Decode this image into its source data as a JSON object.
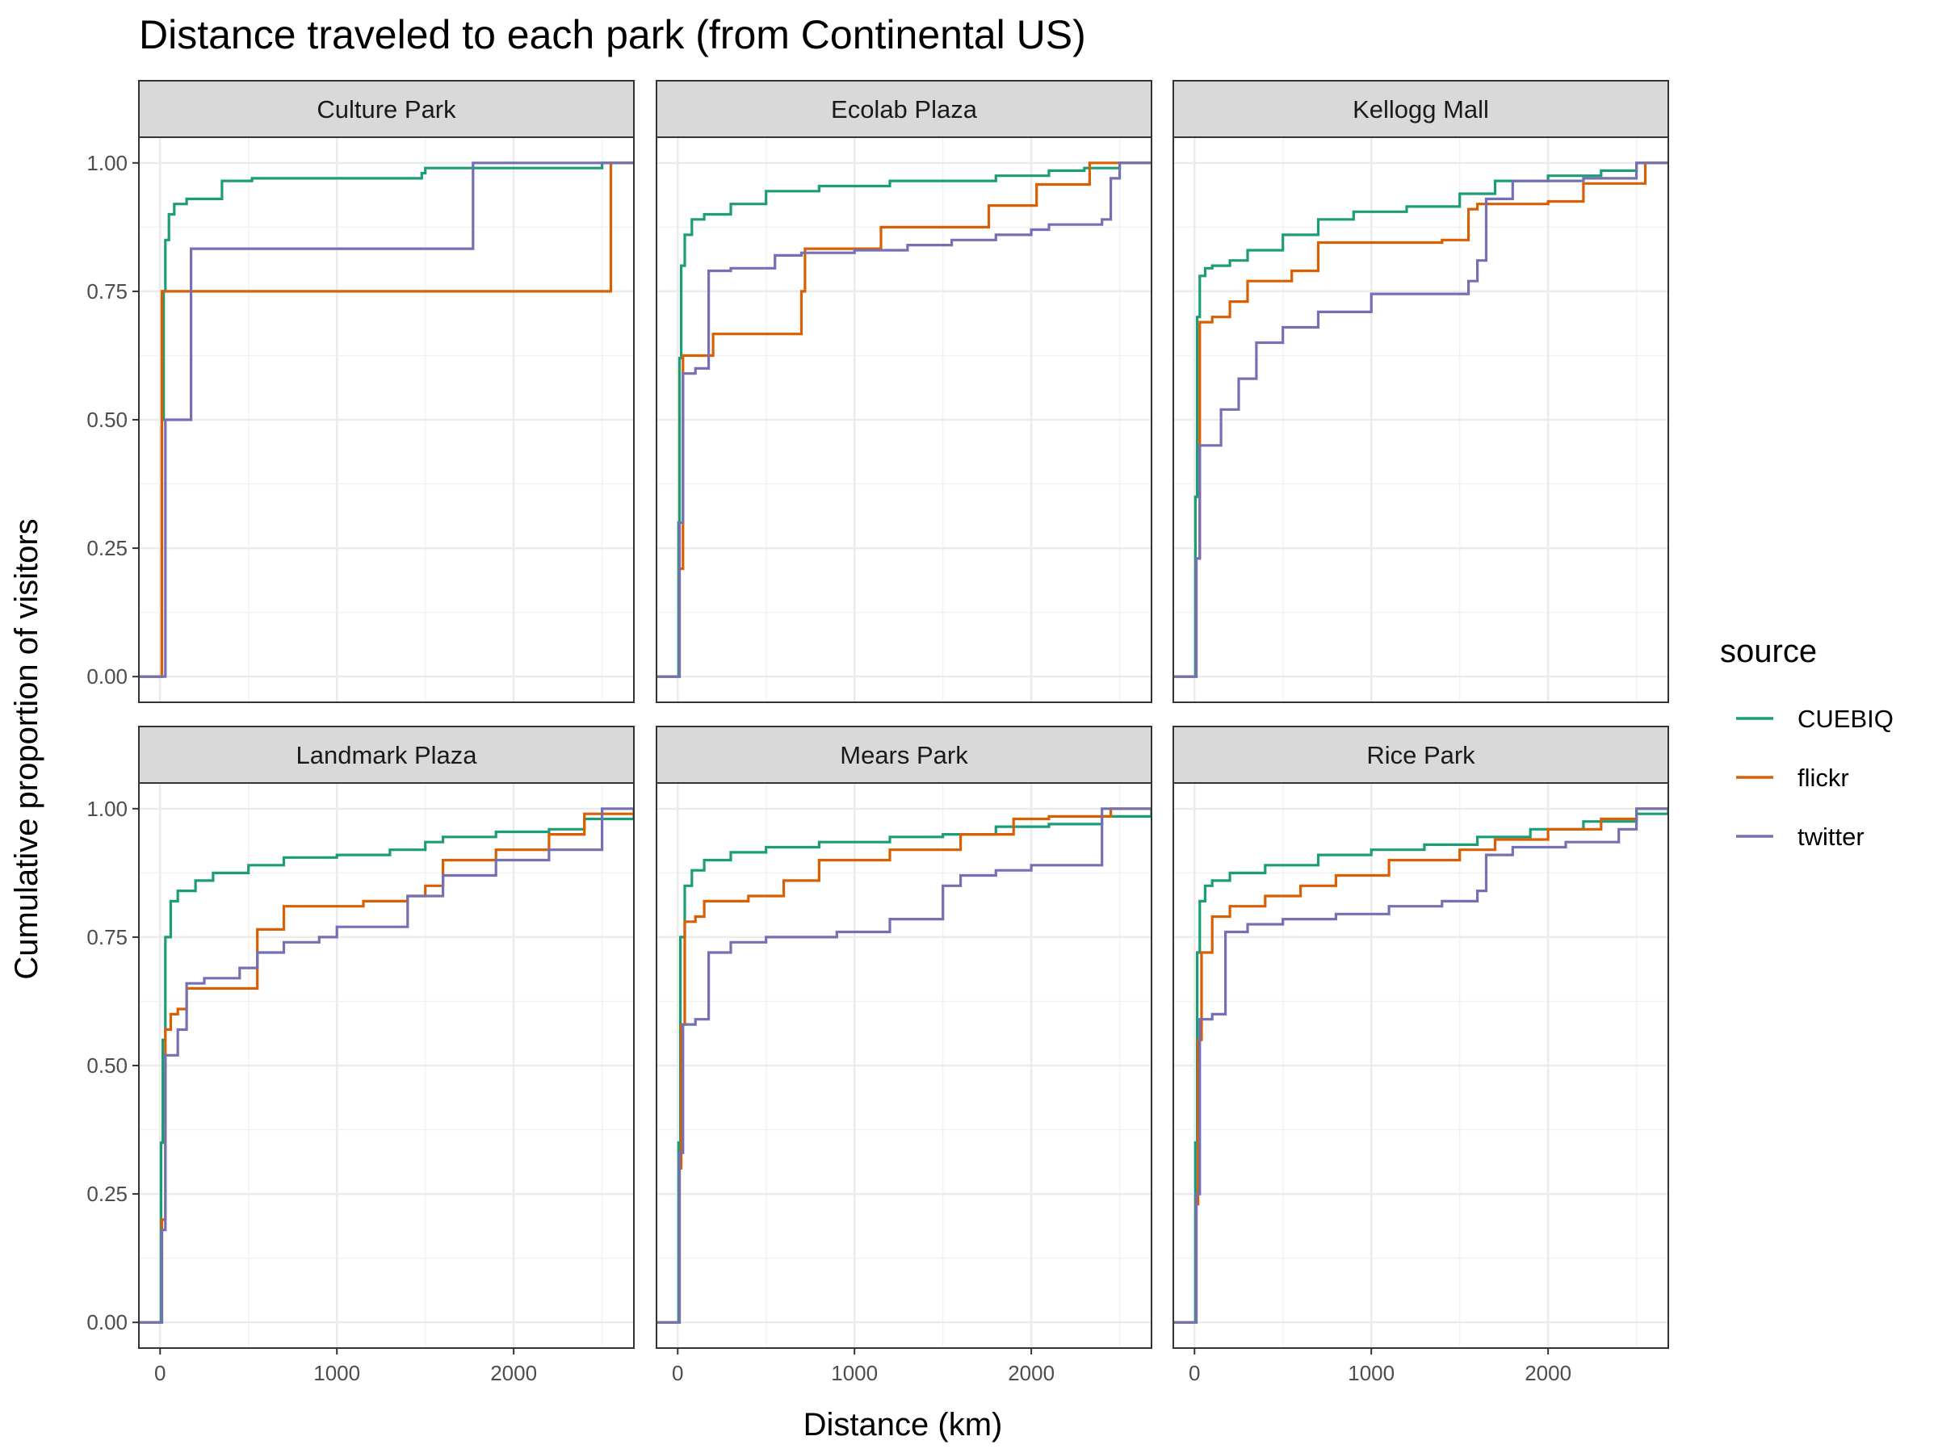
{
  "chart_data": {
    "type": "line",
    "step": true,
    "title": "Distance traveled to each park (from Continental US)",
    "xlabel": "Distance (km)",
    "ylabel": "Cumulative proportion of visitors",
    "xlim": [
      -120,
      2680
    ],
    "ylim": [
      -0.05,
      1.05
    ],
    "x_ticks": [
      0,
      1000,
      2000
    ],
    "x_tick_labels": [
      "0",
      "1000",
      "2000"
    ],
    "y_ticks": [
      0,
      0.25,
      0.5,
      0.75,
      1
    ],
    "y_tick_labels": [
      "0.00",
      "0.25",
      "0.50",
      "0.75",
      "1.00"
    ],
    "grid": true,
    "legend": {
      "title": "source",
      "position": "right",
      "entries": [
        {
          "name": "CUEBIQ",
          "color": "#1b9e77"
        },
        {
          "name": "flickr",
          "color": "#d95f02"
        },
        {
          "name": "twitter",
          "color": "#7570b3"
        }
      ]
    },
    "facets": [
      {
        "name": "Culture Park",
        "series": [
          {
            "name": "CUEBIQ",
            "x": [
              -120,
              5,
              10,
              20,
              30,
              50,
              80,
              150,
              350,
              520,
              1480,
              1500,
              2450,
              2500,
              2680
            ],
            "y": [
              0,
              0,
              0.5,
              0.75,
              0.85,
              0.9,
              0.92,
              0.93,
              0.965,
              0.97,
              0.98,
              0.99,
              0.99,
              1,
              1
            ]
          },
          {
            "name": "flickr",
            "x": [
              -120,
              5,
              10,
              2550,
              2680
            ],
            "y": [
              0,
              0,
              0.75,
              1,
              1
            ]
          },
          {
            "name": "twitter",
            "x": [
              -120,
              15,
              30,
              175,
              1770,
              2680
            ],
            "y": [
              0,
              0,
              0.5,
              0.833,
              1,
              1
            ]
          }
        ]
      },
      {
        "name": "Ecolab Plaza",
        "series": [
          {
            "name": "CUEBIQ",
            "x": [
              -120,
              0,
              5,
              10,
              20,
              40,
              80,
              150,
              300,
              500,
              800,
              1200,
              1800,
              2100,
              2300,
              2500,
              2680
            ],
            "y": [
              0,
              0,
              0.3,
              0.62,
              0.8,
              0.86,
              0.89,
              0.9,
              0.92,
              0.945,
              0.955,
              0.965,
              0.975,
              0.985,
              0.99,
              1,
              1
            ]
          },
          {
            "name": "flickr",
            "x": [
              -120,
              0,
              10,
              30,
              200,
              700,
              720,
              950,
              1150,
              1760,
              2030,
              2330,
              2450,
              2680
            ],
            "y": [
              0,
              0,
              0.21,
              0.625,
              0.667,
              0.75,
              0.833,
              0.833,
              0.875,
              0.917,
              0.958,
              1,
              1,
              1
            ]
          },
          {
            "name": "twitter",
            "x": [
              -120,
              0,
              10,
              30,
              100,
              175,
              300,
              550,
              700,
              1000,
              1300,
              1550,
              1800,
              2000,
              2100,
              2400,
              2450,
              2500,
              2680
            ],
            "y": [
              0,
              0,
              0.3,
              0.59,
              0.6,
              0.79,
              0.795,
              0.82,
              0.825,
              0.83,
              0.84,
              0.85,
              0.86,
              0.87,
              0.88,
              0.89,
              0.97,
              1,
              1
            ]
          }
        ]
      },
      {
        "name": "Kellogg Mall",
        "series": [
          {
            "name": "CUEBIQ",
            "x": [
              -120,
              0,
              5,
              15,
              30,
              60,
              100,
              200,
              300,
              500,
              700,
              900,
              1200,
              1500,
              1700,
              2000,
              2300,
              2500,
              2680
            ],
            "y": [
              0,
              0,
              0.35,
              0.7,
              0.78,
              0.795,
              0.8,
              0.81,
              0.83,
              0.86,
              0.89,
              0.905,
              0.915,
              0.94,
              0.965,
              0.975,
              0.985,
              1,
              1
            ]
          },
          {
            "name": "flickr",
            "x": [
              -120,
              0,
              10,
              30,
              100,
              200,
              300,
              550,
              700,
              1400,
              1550,
              1600,
              2000,
              2200,
              2550,
              2680
            ],
            "y": [
              0,
              0,
              0.23,
              0.69,
              0.7,
              0.73,
              0.77,
              0.79,
              0.845,
              0.85,
              0.91,
              0.92,
              0.925,
              0.96,
              1,
              1
            ]
          },
          {
            "name": "twitter",
            "x": [
              -120,
              0,
              10,
              30,
              150,
              250,
              350,
              500,
              700,
              1000,
              1550,
              1600,
              1650,
              1800,
              2200,
              2500,
              2680
            ],
            "y": [
              0,
              0,
              0.23,
              0.45,
              0.52,
              0.58,
              0.65,
              0.68,
              0.71,
              0.745,
              0.77,
              0.81,
              0.93,
              0.965,
              0.97,
              1,
              1
            ]
          }
        ]
      },
      {
        "name": "Landmark Plaza",
        "series": [
          {
            "name": "CUEBIQ",
            "x": [
              -120,
              0,
              5,
              15,
              30,
              60,
              100,
              200,
              300,
              500,
              700,
              1000,
              1300,
              1500,
              1600,
              1900,
              2200,
              2400,
              2680
            ],
            "y": [
              0,
              0,
              0.35,
              0.55,
              0.75,
              0.82,
              0.84,
              0.86,
              0.875,
              0.89,
              0.905,
              0.91,
              0.92,
              0.935,
              0.945,
              0.955,
              0.96,
              0.98,
              1
            ]
          },
          {
            "name": "flickr",
            "x": [
              -120,
              0,
              10,
              30,
              60,
              100,
              150,
              300,
              550,
              700,
              1150,
              1400,
              1500,
              1600,
              1900,
              2200,
              2400,
              2680
            ],
            "y": [
              0,
              0,
              0.2,
              0.57,
              0.6,
              0.61,
              0.65,
              0.65,
              0.765,
              0.81,
              0.82,
              0.83,
              0.85,
              0.9,
              0.92,
              0.95,
              0.99,
              1
            ]
          },
          {
            "name": "twitter",
            "x": [
              -120,
              0,
              10,
              30,
              100,
              150,
              250,
              450,
              550,
              700,
              900,
              1000,
              1300,
              1400,
              1600,
              1900,
              2200,
              2450,
              2500,
              2680
            ],
            "y": [
              0,
              0,
              0.18,
              0.52,
              0.57,
              0.66,
              0.67,
              0.69,
              0.72,
              0.74,
              0.75,
              0.77,
              0.77,
              0.83,
              0.87,
              0.9,
              0.92,
              0.92,
              1,
              1
            ]
          }
        ]
      },
      {
        "name": "Mears Park",
        "series": [
          {
            "name": "CUEBIQ",
            "x": [
              -120,
              0,
              5,
              15,
              40,
              80,
              150,
              300,
              500,
              800,
              1200,
              1500,
              1800,
              2100,
              2400,
              2680
            ],
            "y": [
              0,
              0,
              0.35,
              0.75,
              0.85,
              0.88,
              0.9,
              0.915,
              0.925,
              0.935,
              0.945,
              0.95,
              0.965,
              0.97,
              0.985,
              1
            ]
          },
          {
            "name": "flickr",
            "x": [
              -120,
              0,
              10,
              20,
              40,
              100,
              150,
              400,
              600,
              800,
              1200,
              1600,
              1900,
              2100,
              2450,
              2680
            ],
            "y": [
              0,
              0,
              0.3,
              0.58,
              0.78,
              0.79,
              0.82,
              0.83,
              0.86,
              0.9,
              0.92,
              0.95,
              0.98,
              0.985,
              1,
              1
            ]
          },
          {
            "name": "twitter",
            "x": [
              -120,
              0,
              10,
              30,
              100,
              175,
              300,
              500,
              900,
              1200,
              1500,
              1600,
              1800,
              2000,
              2400,
              2680
            ],
            "y": [
              0,
              0,
              0.33,
              0.58,
              0.59,
              0.72,
              0.74,
              0.75,
              0.76,
              0.785,
              0.85,
              0.87,
              0.88,
              0.89,
              1,
              1
            ]
          }
        ]
      },
      {
        "name": "Rice Park",
        "series": [
          {
            "name": "CUEBIQ",
            "x": [
              -120,
              0,
              5,
              15,
              30,
              60,
              100,
              200,
              400,
              700,
              1000,
              1300,
              1600,
              1900,
              2200,
              2500,
              2680
            ],
            "y": [
              0,
              0,
              0.35,
              0.72,
              0.82,
              0.85,
              0.86,
              0.875,
              0.89,
              0.91,
              0.92,
              0.93,
              0.945,
              0.96,
              0.975,
              0.99,
              1
            ]
          },
          {
            "name": "flickr",
            "x": [
              -120,
              0,
              10,
              20,
              40,
              100,
              200,
              400,
              600,
              800,
              1100,
              1500,
              1700,
              2000,
              2300,
              2500,
              2680
            ],
            "y": [
              0,
              0,
              0.23,
              0.55,
              0.72,
              0.79,
              0.81,
              0.83,
              0.85,
              0.87,
              0.9,
              0.92,
              0.94,
              0.96,
              0.98,
              1,
              1
            ]
          },
          {
            "name": "twitter",
            "x": [
              -120,
              0,
              10,
              30,
              100,
              175,
              300,
              500,
              800,
              1100,
              1400,
              1600,
              1650,
              1800,
              2100,
              2400,
              2500,
              2680
            ],
            "y": [
              0,
              0,
              0.25,
              0.59,
              0.6,
              0.76,
              0.775,
              0.785,
              0.795,
              0.81,
              0.82,
              0.84,
              0.91,
              0.925,
              0.935,
              0.96,
              1,
              1
            ]
          }
        ]
      }
    ]
  }
}
